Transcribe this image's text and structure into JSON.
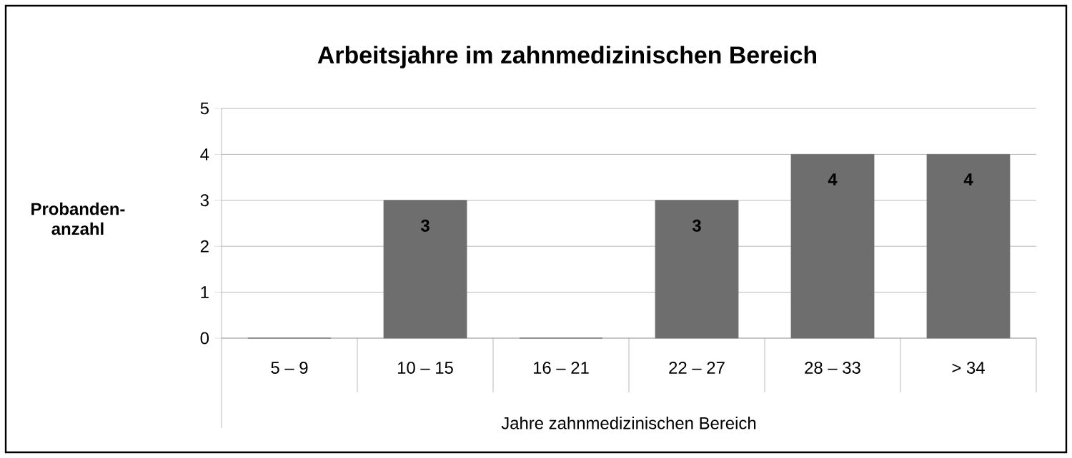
{
  "chart_data": {
    "type": "bar",
    "title": "Arbeitsjahre im zahnmedizinischen Bereich",
    "xlabel": "Jahre zahnmedizinischen Bereich",
    "ylabel": "Probanden-anzahl",
    "categories": [
      "5  –  9",
      "10 – 15",
      "16 – 21",
      "22 – 27",
      "28 – 33",
      "> 34"
    ],
    "values": [
      0,
      3,
      0,
      3,
      4,
      4
    ],
    "value_labels": [
      null,
      "3",
      null,
      "3",
      "4",
      "4"
    ],
    "color": "#6e6e6e",
    "ylim": [
      0,
      5
    ],
    "yticks": [
      0,
      1,
      2,
      3,
      4,
      5
    ],
    "grid": "y"
  }
}
